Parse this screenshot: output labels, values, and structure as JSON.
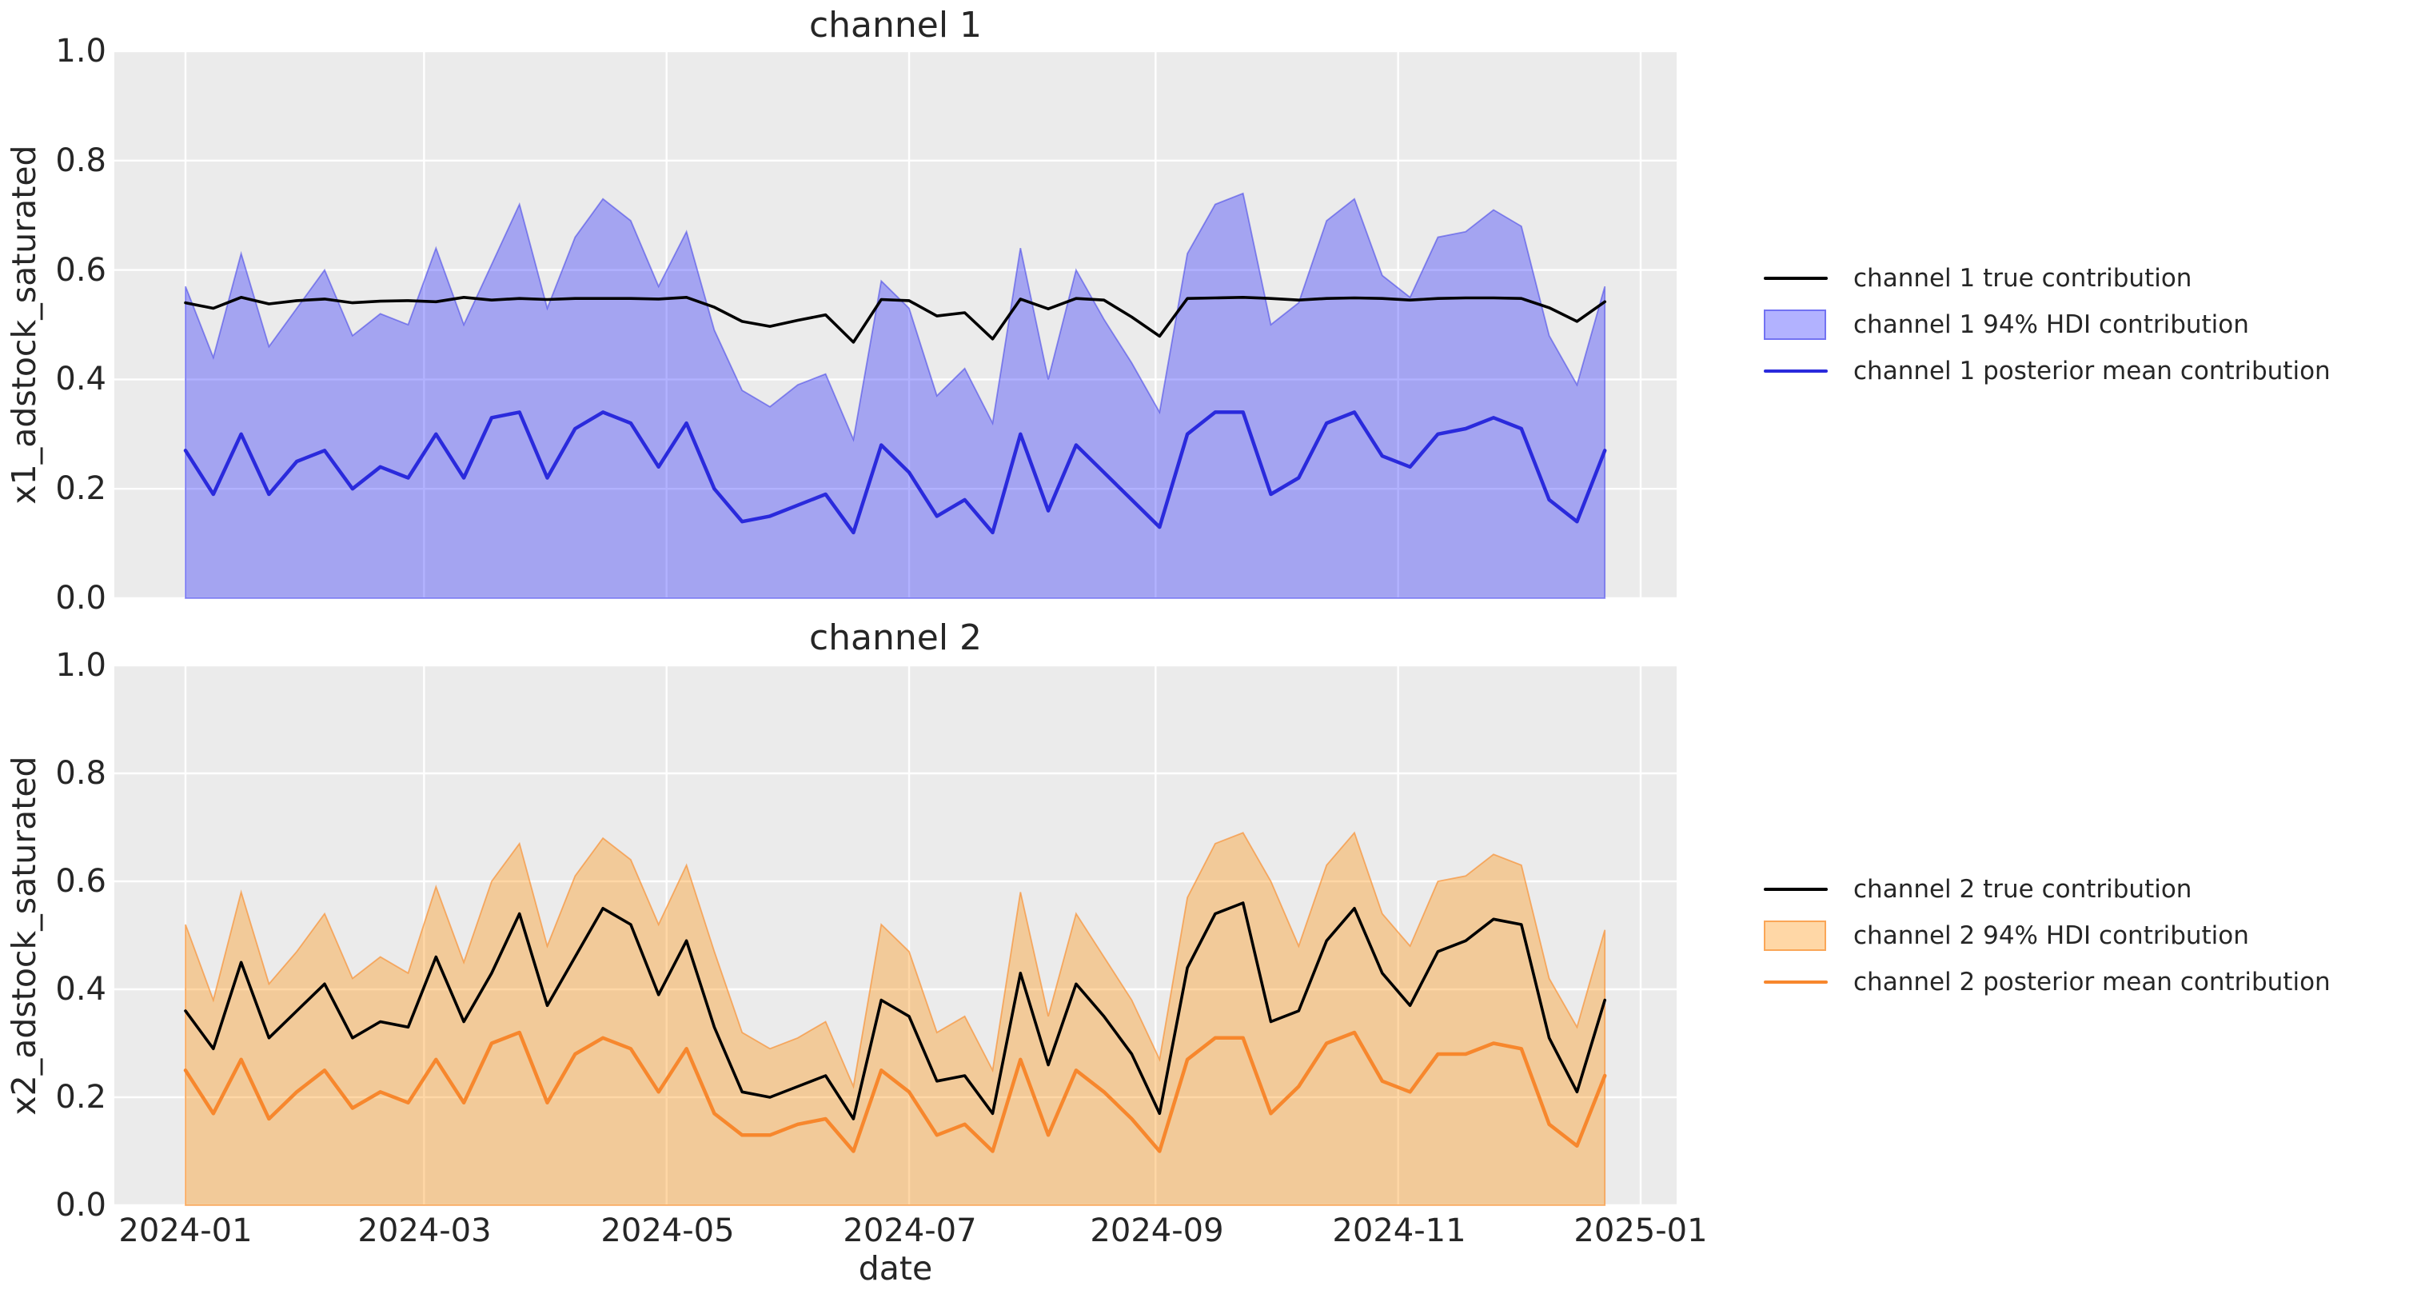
{
  "figure": {
    "background": "#ffffff",
    "plot_background": "#ebebeb",
    "grid_color": "#ffffff",
    "text_color": "#262626"
  },
  "chart_data": [
    {
      "type": "line",
      "title": "channel 1",
      "ylabel": "x1_adstock_saturated",
      "xlabel": "",
      "grid": true,
      "legend_position": "center right, outside axes",
      "x_axis": {
        "tick_labels": [
          "2024-01",
          "2024-03",
          "2024-05",
          "2024-07",
          "2024-09",
          "2024-11",
          "2025-01"
        ],
        "tick_days": [
          0,
          60,
          121,
          182,
          244,
          305,
          366
        ],
        "start_date": "2024-01-01",
        "step_days": 7,
        "n_points": 52,
        "span_days": 366
      },
      "y_axis": {
        "tick_labels": [
          "0.0",
          "0.2",
          "0.4",
          "0.6",
          "0.8",
          "1.0"
        ],
        "min": 0,
        "max": 1
      },
      "series": [
        {
          "name": "channel 1 true contribution",
          "kind": "line",
          "color": "#000000",
          "width": 3.6,
          "values": [
            0.54,
            0.53,
            0.55,
            0.538,
            0.544,
            0.547,
            0.54,
            0.543,
            0.544,
            0.542,
            0.55,
            0.545,
            0.548,
            0.546,
            0.548,
            0.548,
            0.548,
            0.547,
            0.55,
            0.532,
            0.506,
            0.497,
            0.508,
            0.518,
            0.468,
            0.546,
            0.544,
            0.516,
            0.522,
            0.474,
            0.547,
            0.529,
            0.548,
            0.545,
            0.514,
            0.479,
            0.548,
            0.549,
            0.55,
            0.548,
            0.545,
            0.548,
            0.549,
            0.548,
            0.545,
            0.548,
            0.549,
            0.549,
            0.548,
            0.531,
            0.506,
            0.542
          ]
        },
        {
          "name": "channel 1 94% HDI contribution",
          "kind": "band",
          "fill": "rgba(0,0,255,0.30)",
          "edge": "rgba(50,50,230,0.50)",
          "edge_width": 1.8,
          "lower": 0,
          "upper": [
            0.57,
            0.44,
            0.63,
            0.46,
            0.53,
            0.6,
            0.48,
            0.52,
            0.5,
            0.64,
            0.5,
            0.61,
            0.72,
            0.53,
            0.66,
            0.73,
            0.69,
            0.57,
            0.67,
            0.49,
            0.38,
            0.35,
            0.39,
            0.41,
            0.29,
            0.58,
            0.53,
            0.37,
            0.42,
            0.32,
            0.64,
            0.4,
            0.6,
            0.51,
            0.43,
            0.34,
            0.63,
            0.72,
            0.74,
            0.5,
            0.54,
            0.69,
            0.73,
            0.59,
            0.55,
            0.66,
            0.67,
            0.71,
            0.68,
            0.48,
            0.39,
            0.57
          ]
        },
        {
          "name": "channel 1 posterior mean contribution",
          "kind": "line",
          "color": "#2a2adc",
          "width": 4.5,
          "values": [
            0.27,
            0.19,
            0.3,
            0.19,
            0.25,
            0.27,
            0.2,
            0.24,
            0.22,
            0.3,
            0.22,
            0.33,
            0.34,
            0.22,
            0.31,
            0.34,
            0.32,
            0.24,
            0.32,
            0.2,
            0.14,
            0.15,
            0.17,
            0.19,
            0.12,
            0.28,
            0.23,
            0.15,
            0.18,
            0.12,
            0.3,
            0.16,
            0.28,
            0.23,
            0.18,
            0.13,
            0.3,
            0.34,
            0.34,
            0.19,
            0.22,
            0.32,
            0.34,
            0.26,
            0.24,
            0.3,
            0.31,
            0.33,
            0.31,
            0.18,
            0.14,
            0.27
          ]
        }
      ]
    },
    {
      "type": "line",
      "title": "channel 2",
      "ylabel": "x2_adstock_saturated",
      "xlabel": "date",
      "grid": true,
      "legend_position": "center right, outside axes",
      "x_axis": {
        "tick_labels": [
          "2024-01",
          "2024-03",
          "2024-05",
          "2024-07",
          "2024-09",
          "2024-11",
          "2025-01"
        ],
        "tick_days": [
          0,
          60,
          121,
          182,
          244,
          305,
          366
        ],
        "start_date": "2024-01-01",
        "step_days": 7,
        "n_points": 52,
        "span_days": 366
      },
      "y_axis": {
        "tick_labels": [
          "0.0",
          "0.2",
          "0.4",
          "0.6",
          "0.8",
          "1.0"
        ],
        "min": 0,
        "max": 1
      },
      "series": [
        {
          "name": "channel 2 true contribution",
          "kind": "line",
          "color": "#000000",
          "width": 3.6,
          "values": [
            0.36,
            0.29,
            0.45,
            0.31,
            0.36,
            0.41,
            0.31,
            0.34,
            0.33,
            0.46,
            0.34,
            0.43,
            0.54,
            0.37,
            0.46,
            0.55,
            0.52,
            0.39,
            0.49,
            0.33,
            0.21,
            0.2,
            0.22,
            0.24,
            0.16,
            0.38,
            0.35,
            0.23,
            0.24,
            0.17,
            0.43,
            0.26,
            0.41,
            0.35,
            0.28,
            0.17,
            0.44,
            0.54,
            0.56,
            0.34,
            0.36,
            0.49,
            0.55,
            0.43,
            0.37,
            0.47,
            0.49,
            0.53,
            0.52,
            0.31,
            0.21,
            0.38
          ]
        },
        {
          "name": "channel 2 94% HDI contribution",
          "kind": "band",
          "fill": "rgba(255,140,0,0.35)",
          "edge": "rgba(248,140,45,0.65)",
          "edge_width": 1.8,
          "lower": 0,
          "upper": [
            0.52,
            0.38,
            0.58,
            0.41,
            0.47,
            0.54,
            0.42,
            0.46,
            0.43,
            0.59,
            0.45,
            0.6,
            0.67,
            0.48,
            0.61,
            0.68,
            0.64,
            0.52,
            0.63,
            0.47,
            0.32,
            0.29,
            0.31,
            0.34,
            0.22,
            0.52,
            0.47,
            0.32,
            0.35,
            0.25,
            0.58,
            0.35,
            0.54,
            0.46,
            0.38,
            0.27,
            0.57,
            0.67,
            0.69,
            0.6,
            0.48,
            0.63,
            0.69,
            0.54,
            0.48,
            0.6,
            0.61,
            0.65,
            0.63,
            0.42,
            0.33,
            0.51
          ]
        },
        {
          "name": "channel 2 posterior mean contribution",
          "kind": "line",
          "color": "#f7872d",
          "width": 4.5,
          "values": [
            0.25,
            0.17,
            0.27,
            0.16,
            0.21,
            0.25,
            0.18,
            0.21,
            0.19,
            0.27,
            0.19,
            0.3,
            0.32,
            0.19,
            0.28,
            0.31,
            0.29,
            0.21,
            0.29,
            0.17,
            0.13,
            0.13,
            0.15,
            0.16,
            0.1,
            0.25,
            0.21,
            0.13,
            0.15,
            0.1,
            0.27,
            0.13,
            0.25,
            0.21,
            0.16,
            0.1,
            0.27,
            0.31,
            0.31,
            0.17,
            0.22,
            0.3,
            0.32,
            0.23,
            0.21,
            0.28,
            0.28,
            0.3,
            0.29,
            0.15,
            0.11,
            0.24
          ]
        }
      ]
    }
  ]
}
